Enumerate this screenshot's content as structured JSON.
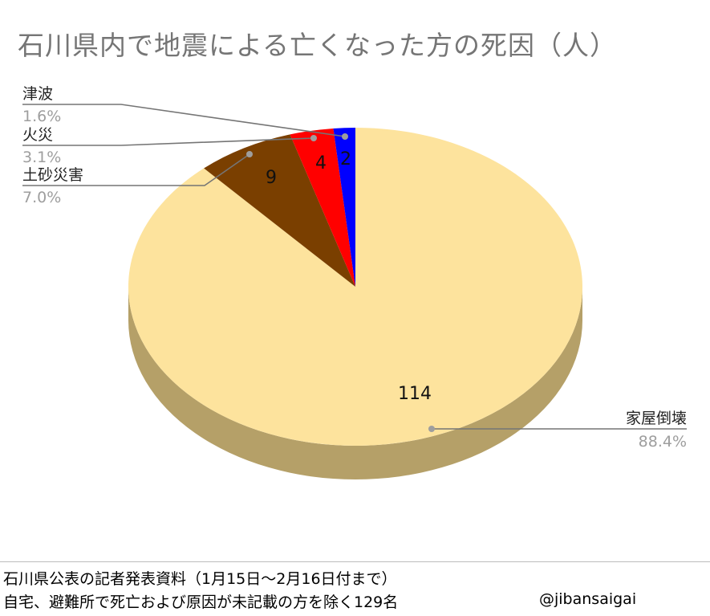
{
  "chart_data": {
    "type": "pie",
    "title": "石川県内で地震による亡くなった方の死因（人）",
    "categories": [
      "家屋倒壊",
      "土砂災害",
      "火災",
      "津波"
    ],
    "values": [
      114,
      9,
      4,
      2
    ],
    "percent_labels": [
      "88.4%",
      "7.0%",
      "3.1%",
      "1.6%"
    ],
    "colors": [
      "#fde39d",
      "#7a3f00",
      "#ff0000",
      "#0000ff"
    ],
    "side_colors": [
      "#b5a068",
      "#4e2800",
      "#a00000",
      "#00009a"
    ],
    "style": "3d"
  },
  "footer": {
    "line1": "石川県公表の記者発表資料（1月15日〜2月16日付まで）",
    "line2": "自宅、避難所で死亡および原因が未記載の方を除く129名",
    "handle": "@jibansaigai"
  }
}
